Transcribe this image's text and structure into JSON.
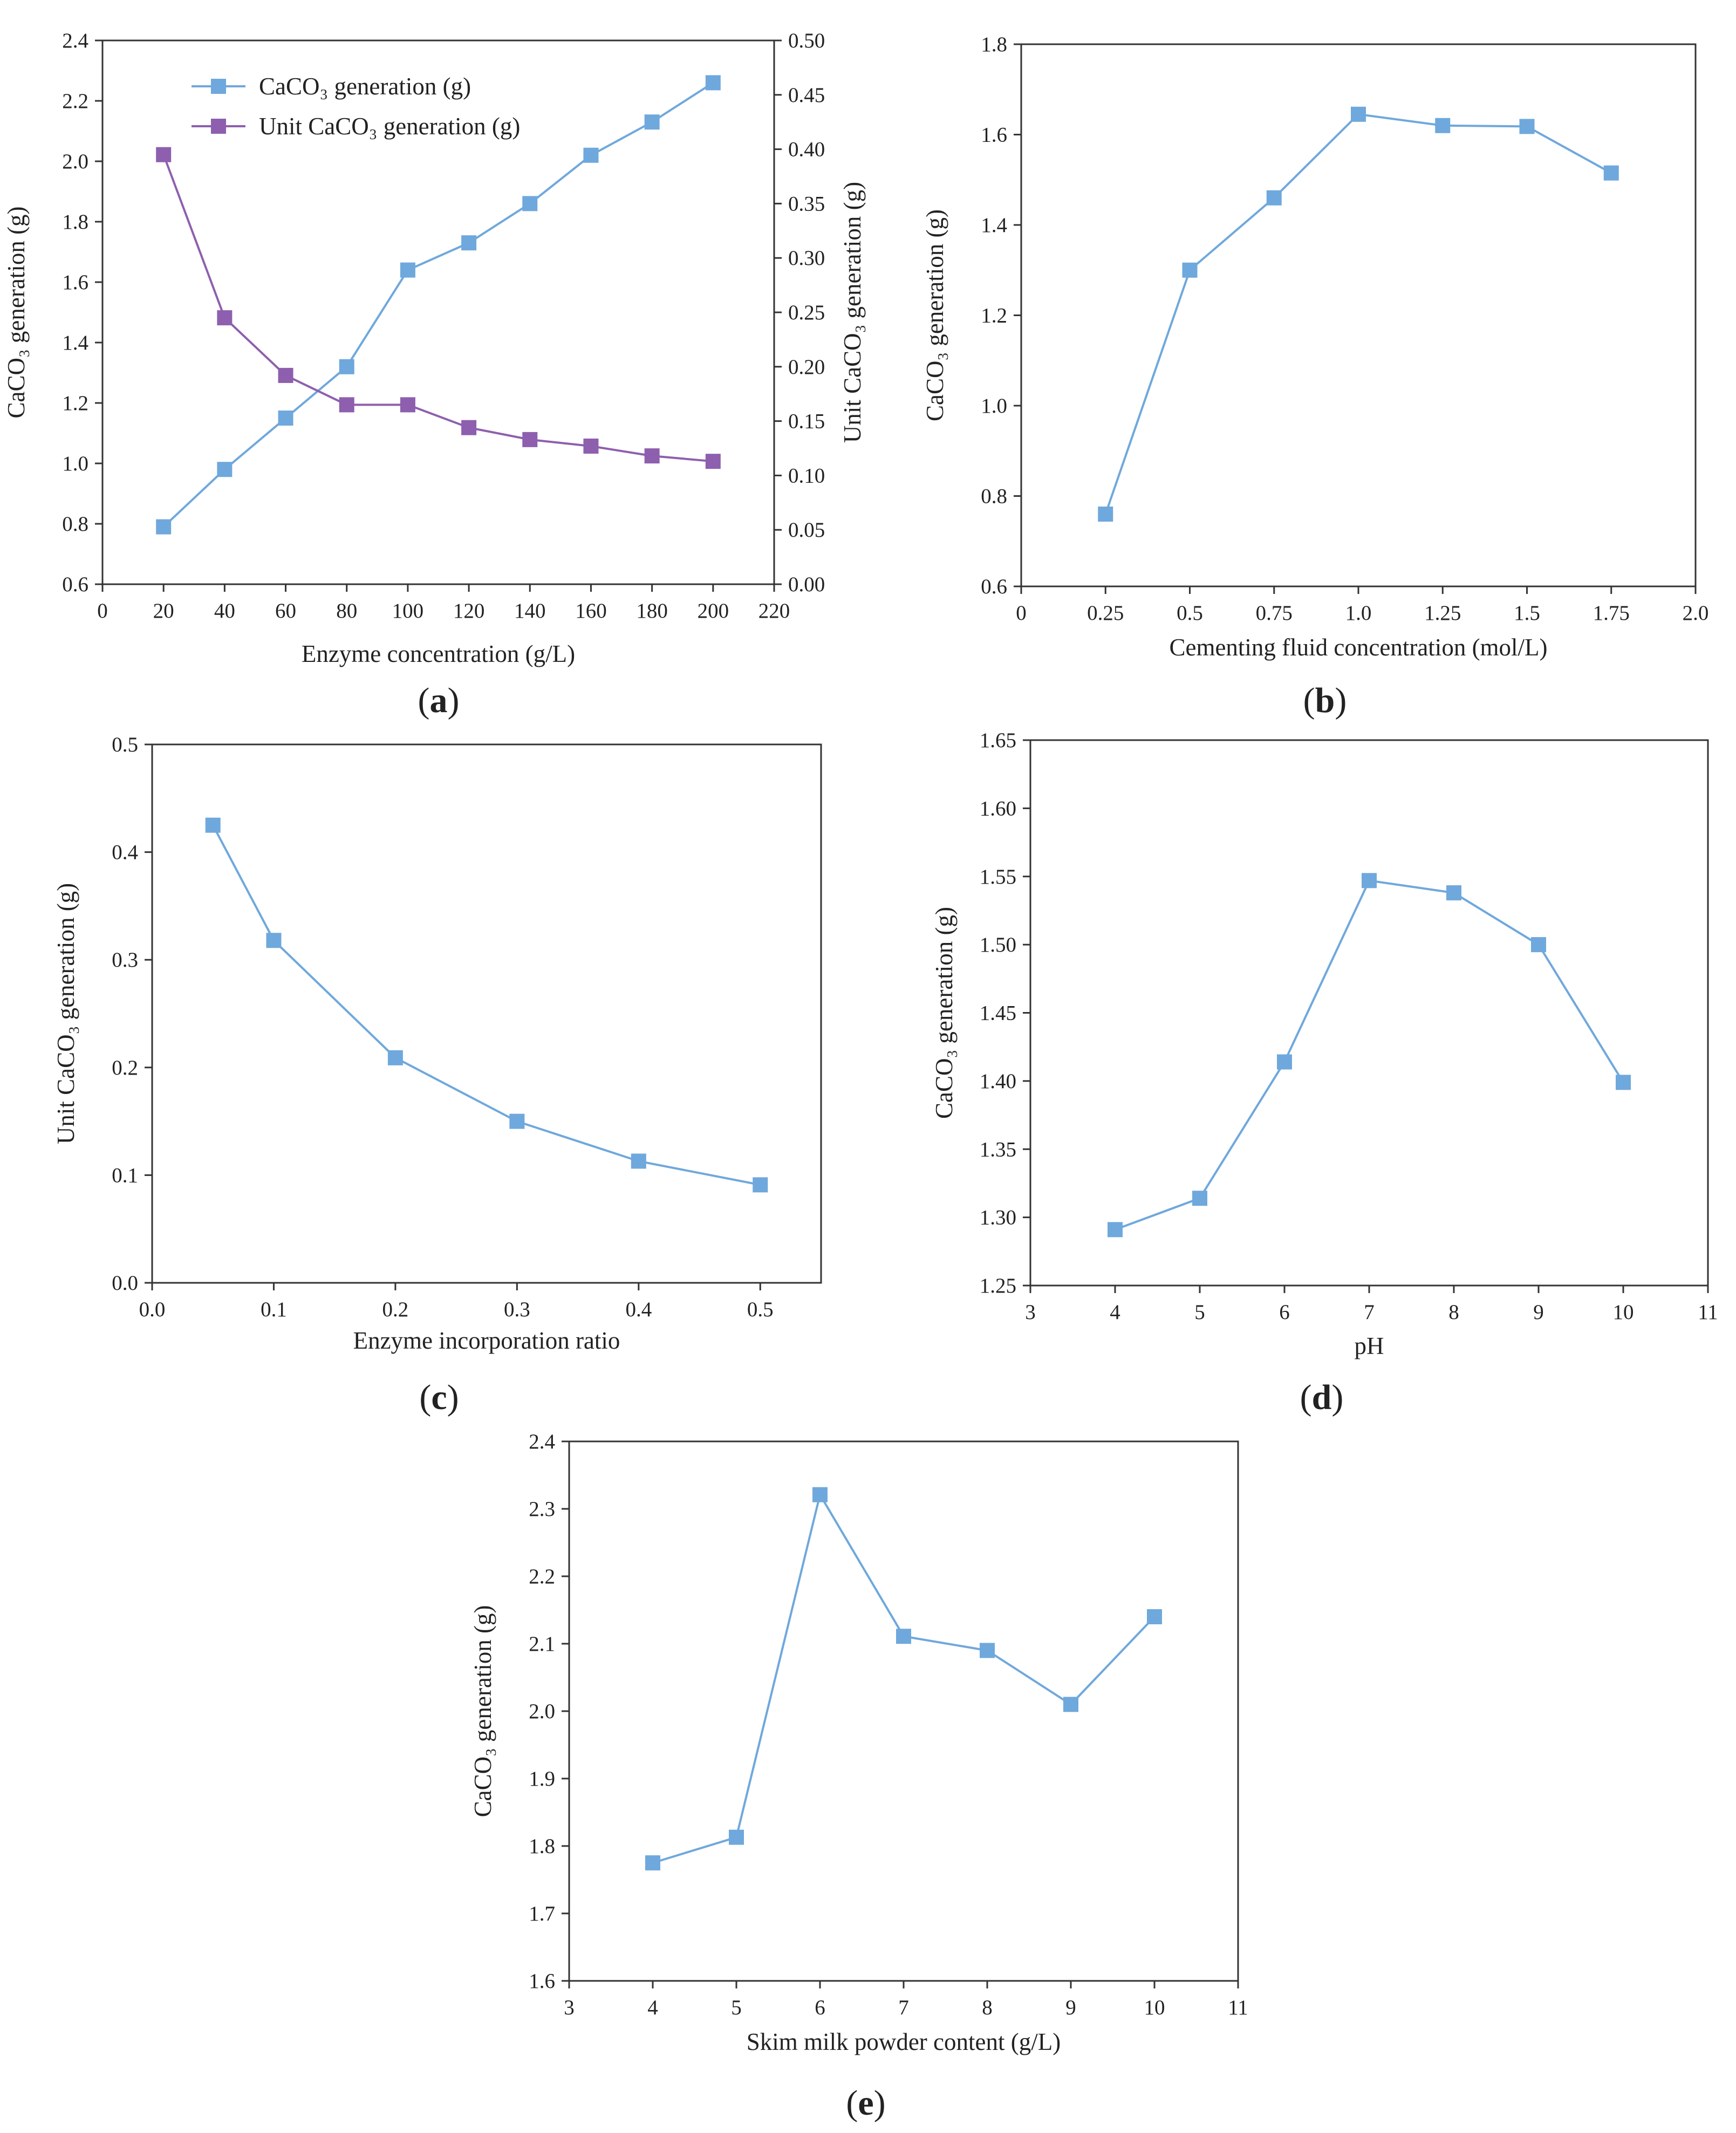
{
  "colors": {
    "series_blue": "#6fa8dc",
    "series_purple": "#8e5fae",
    "axis": "#333333"
  },
  "chart_data": [
    {
      "panel": "(a)",
      "panel_letter": "a",
      "type": "line",
      "title": "",
      "xlabel": "Enzyme concentration (g/L)",
      "ylabel": "CaCO₃ generation (g)",
      "y2label": "Unit CaCO₃ generation (g)",
      "xlim": [
        0,
        220
      ],
      "ylim": [
        0.6,
        2.4
      ],
      "y2lim": [
        0.0,
        0.5
      ],
      "xticks": [
        0,
        20,
        40,
        60,
        80,
        100,
        120,
        140,
        160,
        180,
        200,
        220
      ],
      "yticks": [
        0.6,
        0.8,
        1.0,
        1.2,
        1.4,
        1.6,
        1.8,
        2.0,
        2.2,
        2.4
      ],
      "y2ticks": [
        0.0,
        0.05,
        0.1,
        0.15,
        0.2,
        0.25,
        0.3,
        0.35,
        0.4,
        0.45,
        0.5
      ],
      "xtick_labels": [
        "0",
        "20",
        "40",
        "60",
        "80",
        "100",
        "120",
        "140",
        "160",
        "180",
        "200",
        "220"
      ],
      "ytick_labels": [
        "0.6",
        "0.8",
        "1.0",
        "1.2",
        "1.4",
        "1.6",
        "1.8",
        "2.0",
        "2.2",
        "2.4"
      ],
      "y2tick_labels": [
        "0.00",
        "0.05",
        "0.10",
        "0.15",
        "0.20",
        "0.25",
        "0.30",
        "0.35",
        "0.40",
        "0.45",
        "0.50"
      ],
      "legend_position": "top-left",
      "x": [
        20,
        40,
        60,
        80,
        100,
        120,
        140,
        160,
        180,
        200
      ],
      "series": [
        {
          "name": "CaCO₃ generation (g)",
          "axis": "left",
          "color": "#6fa8dc",
          "values": [
            0.79,
            0.98,
            1.15,
            1.32,
            1.64,
            1.73,
            1.86,
            2.02,
            2.13,
            2.26
          ]
        },
        {
          "name": "Unit CaCO₃ generation (g)",
          "axis": "right",
          "color": "#8e5fae",
          "values": [
            0.395,
            0.245,
            0.192,
            0.165,
            0.165,
            0.144,
            0.133,
            0.127,
            0.118,
            0.113
          ]
        }
      ]
    },
    {
      "panel": "(b)",
      "panel_letter": "b",
      "type": "line",
      "title": "",
      "xlabel": "Cementing fluid concentration (mol/L)",
      "ylabel": "CaCO₃ generation (g)",
      "xlim": [
        0,
        2.0
      ],
      "ylim": [
        0.6,
        1.8
      ],
      "xticks": [
        0,
        0.25,
        0.5,
        0.75,
        1.0,
        1.25,
        1.5,
        1.75,
        2.0
      ],
      "yticks": [
        0.6,
        0.8,
        1.0,
        1.2,
        1.4,
        1.6,
        1.8
      ],
      "xtick_labels": [
        "0",
        "0.25",
        "0.5",
        "0.75",
        "1.0",
        "1.25",
        "1.5",
        "1.75",
        "2.0"
      ],
      "ytick_labels": [
        "0.6",
        "0.8",
        "1.0",
        "1.2",
        "1.4",
        "1.6",
        "1.8"
      ],
      "x": [
        0.25,
        0.5,
        0.75,
        1.0,
        1.25,
        1.5,
        1.75
      ],
      "series": [
        {
          "name": "CaCO₃ generation (g)",
          "color": "#6fa8dc",
          "values": [
            0.76,
            1.3,
            1.46,
            1.645,
            1.62,
            1.618,
            1.515
          ]
        }
      ]
    },
    {
      "panel": "(c)",
      "panel_letter": "c",
      "type": "line",
      "title": "",
      "xlabel": "Enzyme incorporation ratio",
      "ylabel": "Unit CaCO₃ generation (g)",
      "xlim": [
        0.0,
        0.55
      ],
      "ylim": [
        0.0,
        0.5
      ],
      "xticks": [
        0.0,
        0.1,
        0.2,
        0.3,
        0.4,
        0.5
      ],
      "yticks": [
        0.0,
        0.1,
        0.2,
        0.3,
        0.4,
        0.5
      ],
      "xtick_labels": [
        "0.0",
        "0.1",
        "0.2",
        "0.3",
        "0.4",
        "0.5"
      ],
      "ytick_labels": [
        "0.0",
        "0.1",
        "0.2",
        "0.3",
        "0.4",
        "0.5"
      ],
      "x": [
        0.05,
        0.1,
        0.2,
        0.3,
        0.4,
        0.5
      ],
      "series": [
        {
          "name": "Unit CaCO₃ generation (g)",
          "color": "#6fa8dc",
          "values": [
            0.425,
            0.318,
            0.209,
            0.15,
            0.113,
            0.091
          ]
        }
      ]
    },
    {
      "panel": "(d)",
      "panel_letter": "d",
      "type": "line",
      "title": "",
      "xlabel": "pH",
      "ylabel": "CaCO₃ generation (g)",
      "xlim": [
        3,
        11
      ],
      "ylim": [
        1.25,
        1.65
      ],
      "xticks": [
        3,
        4,
        5,
        6,
        7,
        8,
        9,
        10,
        11
      ],
      "yticks": [
        1.25,
        1.3,
        1.35,
        1.4,
        1.45,
        1.5,
        1.55,
        1.6,
        1.65
      ],
      "xtick_labels": [
        "3",
        "4",
        "5",
        "6",
        "7",
        "8",
        "9",
        "10",
        "11"
      ],
      "ytick_labels": [
        "1.25",
        "1.30",
        "1.35",
        "1.40",
        "1.45",
        "1.50",
        "1.55",
        "1.60",
        "1.65"
      ],
      "x": [
        4,
        5,
        6,
        7,
        8,
        9,
        10
      ],
      "series": [
        {
          "name": "CaCO₃ generation (g)",
          "color": "#6fa8dc",
          "values": [
            1.291,
            1.314,
            1.414,
            1.547,
            1.538,
            1.5,
            1.399
          ]
        }
      ]
    },
    {
      "panel": "(e)",
      "panel_letter": "e",
      "type": "line",
      "title": "",
      "xlabel": "Skim milk powder content (g/L)",
      "ylabel": "CaCO₃ generation (g)",
      "xlim": [
        3,
        11
      ],
      "ylim": [
        1.6,
        2.4
      ],
      "xticks": [
        3,
        4,
        5,
        6,
        7,
        8,
        9,
        10,
        11
      ],
      "yticks": [
        1.6,
        1.7,
        1.8,
        1.9,
        2.0,
        2.1,
        2.2,
        2.3,
        2.4
      ],
      "xtick_labels": [
        "3",
        "4",
        "5",
        "6",
        "7",
        "8",
        "9",
        "10",
        "11"
      ],
      "ytick_labels": [
        "1.6",
        "1.7",
        "1.8",
        "1.9",
        "2.0",
        "2.1",
        "2.2",
        "2.3",
        "2.4"
      ],
      "x": [
        4,
        5,
        6,
        7,
        8,
        9,
        10
      ],
      "series": [
        {
          "name": "CaCO₃ generation (g)",
          "color": "#6fa8dc",
          "values": [
            1.775,
            1.813,
            2.321,
            2.111,
            2.09,
            2.01,
            2.14
          ]
        }
      ]
    }
  ]
}
